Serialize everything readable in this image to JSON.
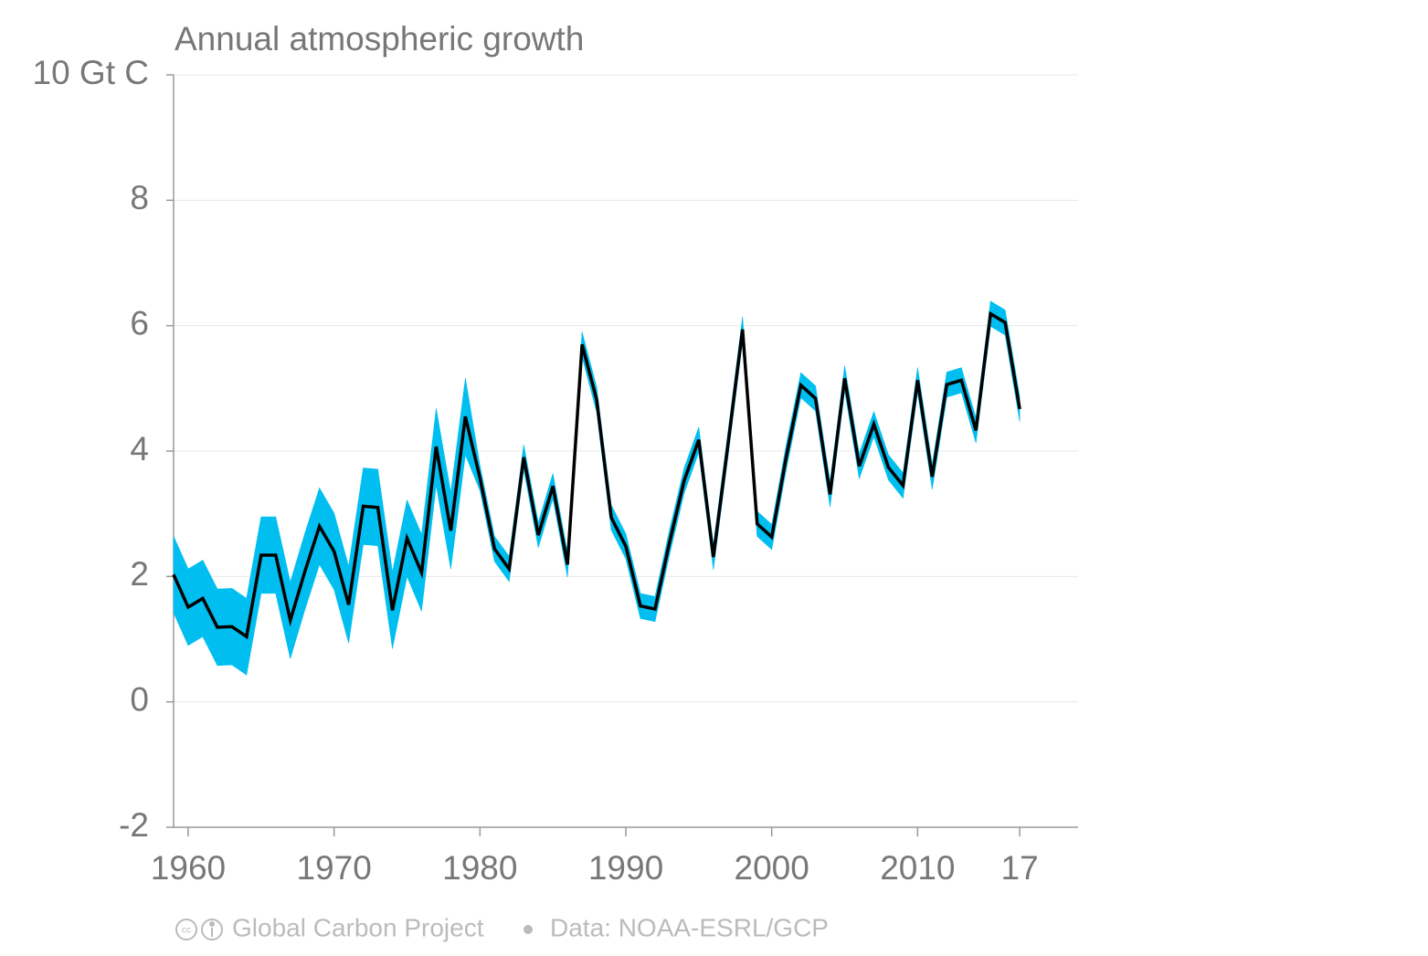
{
  "chart_data": {
    "type": "band-line",
    "title": "Annual atmospheric growth",
    "x": [
      1959,
      1960,
      1961,
      1962,
      1963,
      1964,
      1965,
      1966,
      1967,
      1968,
      1969,
      1970,
      1971,
      1972,
      1973,
      1974,
      1975,
      1976,
      1977,
      1978,
      1979,
      1980,
      1981,
      1982,
      1983,
      1984,
      1985,
      1986,
      1987,
      1988,
      1989,
      1990,
      1991,
      1992,
      1993,
      1994,
      1995,
      1996,
      1997,
      1998,
      1999,
      2000,
      2001,
      2002,
      2003,
      2004,
      2005,
      2006,
      2007,
      2008,
      2009,
      2010,
      2011,
      2012,
      2013,
      2014,
      2015,
      2016,
      2017
    ],
    "values": [
      2.03,
      1.51,
      1.65,
      1.19,
      1.2,
      1.04,
      2.34,
      2.34,
      1.3,
      2.08,
      2.8,
      2.4,
      1.55,
      3.12,
      3.1,
      1.46,
      2.61,
      2.06,
      4.07,
      2.73,
      4.55,
      3.57,
      2.44,
      2.12,
      3.9,
      2.66,
      3.44,
      2.19,
      5.7,
      4.82,
      2.94,
      2.48,
      1.53,
      1.48,
      2.55,
      3.53,
      4.18,
      2.31,
      4.1,
      5.94,
      2.84,
      2.63,
      3.91,
      5.05,
      4.84,
      3.31,
      5.16,
      3.76,
      4.43,
      3.74,
      3.45,
      5.13,
      3.59,
      5.06,
      5.13,
      4.33,
      6.19,
      6.05,
      4.67
    ],
    "errors": [
      0.61,
      0.61,
      0.61,
      0.61,
      0.61,
      0.61,
      0.61,
      0.61,
      0.61,
      0.61,
      0.61,
      0.61,
      0.61,
      0.61,
      0.61,
      0.61,
      0.61,
      0.61,
      0.61,
      0.61,
      0.61,
      0.2,
      0.2,
      0.2,
      0.2,
      0.2,
      0.2,
      0.2,
      0.2,
      0.2,
      0.2,
      0.2,
      0.2,
      0.2,
      0.2,
      0.2,
      0.2,
      0.2,
      0.2,
      0.2,
      0.2,
      0.2,
      0.2,
      0.2,
      0.2,
      0.2,
      0.2,
      0.2,
      0.2,
      0.2,
      0.2,
      0.2,
      0.2,
      0.2,
      0.2,
      0.2,
      0.2,
      0.2,
      0.2
    ],
    "color": "#000000",
    "band_color": "#00bff0",
    "xlim": [
      1959,
      2021
    ],
    "ylim": [
      -2,
      10
    ],
    "xticks": [
      1960,
      1970,
      1980,
      1990,
      2000,
      2010,
      {
        "value": 2017,
        "label": "17"
      }
    ],
    "yticks": [
      -2,
      0,
      2,
      4,
      6,
      8,
      {
        "value": 10,
        "label": "10 Gt C"
      }
    ],
    "grid": true,
    "footer": {
      "source": "Global Carbon Project",
      "data": "Data: NOAA-ESRL/GCP"
    }
  }
}
